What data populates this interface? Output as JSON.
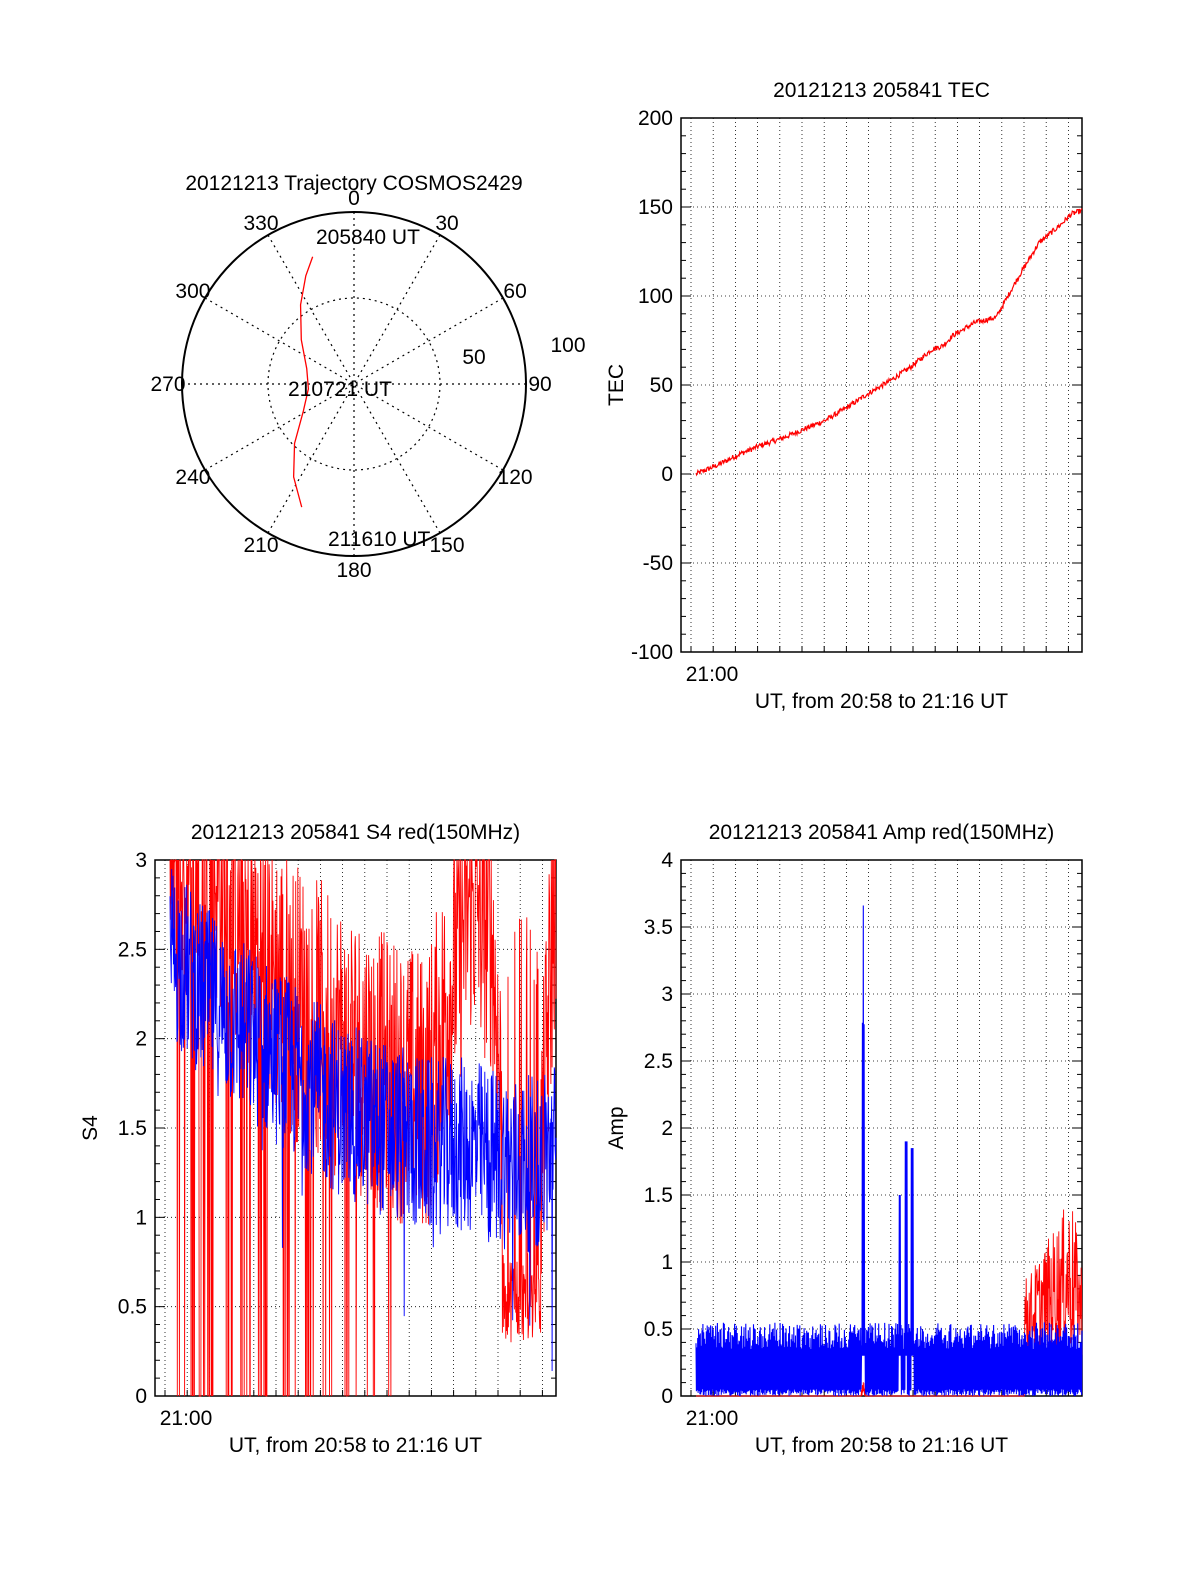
{
  "colors": {
    "red": "#ff0000",
    "blue": "#0000ff",
    "black": "#000000",
    "grid": "#000000"
  },
  "chart_data": [
    {
      "type": "polar",
      "title": "20121213 Trajectory COSMOS2429",
      "azimuth_labels": [
        "0",
        "30",
        "60",
        "90",
        "120",
        "150",
        "180",
        "210",
        "240",
        "270",
        "300",
        "330"
      ],
      "radial_labels": [
        "50",
        "100"
      ],
      "annotations": {
        "start": "205840 UT",
        "middle": "210721 UT",
        "end": "211610 UT"
      },
      "trajectory": [
        {
          "az": 342,
          "el": 20
        },
        {
          "az": 336,
          "el": 28
        },
        {
          "az": 326,
          "el": 40
        },
        {
          "az": 310,
          "el": 54
        },
        {
          "az": 288,
          "el": 64
        },
        {
          "az": 264,
          "el": 66
        },
        {
          "az": 242,
          "el": 60
        },
        {
          "az": 225,
          "el": 46
        },
        {
          "az": 213,
          "el": 32
        },
        {
          "az": 203,
          "el": 20
        }
      ]
    },
    {
      "type": "line",
      "title": "20121213 205841 TEC",
      "xlabel": "UT, from 20:58 to 21:16 UT",
      "ylabel": "TEC",
      "xtick_label": "21:00",
      "ylim": [
        -100,
        200
      ],
      "yticks": [
        "-100",
        "-50",
        "0",
        "50",
        "100",
        "150",
        "200"
      ],
      "grid": true,
      "series": [
        {
          "x": [
            0,
            1,
            2,
            3,
            4,
            5,
            6,
            7,
            8,
            9,
            10,
            11,
            11.5,
            12,
            13,
            14,
            15,
            16,
            17,
            17.5,
            18
          ],
          "values": [
            0,
            5,
            11,
            16,
            20,
            25,
            30,
            37,
            45,
            52,
            60,
            70,
            72,
            78,
            85,
            88,
            110,
            130,
            140,
            146,
            148
          ]
        }
      ]
    },
    {
      "type": "line",
      "title": "20121213 205841 S4 red(150MHz)",
      "xlabel": "UT, from 20:58 to 21:16 UT",
      "ylabel": "S4",
      "xtick_label": "21:00",
      "ylim": [
        0,
        3
      ],
      "yticks": [
        "0",
        "0.5",
        "1",
        "1.5",
        "2",
        "2.5",
        "3"
      ],
      "grid": true,
      "series": [
        {
          "name": "",
          "x": [
            0,
            2,
            4,
            6,
            8,
            10,
            12,
            14,
            16,
            17,
            18
          ],
          "values": [
            2.5,
            2.2,
            2.0,
            1.8,
            1.6,
            1.5,
            1.4,
            1.4,
            1.3,
            1.3,
            1.4
          ]
        },
        {
          "name": "",
          "x": [
            0,
            2,
            4,
            6,
            8,
            10,
            12,
            14,
            15,
            16,
            17,
            18
          ],
          "values": [
            3.0,
            3.0,
            2.5,
            2.2,
            2.0,
            1.8,
            1.7,
            2.8,
            2.6,
            0.4,
            0.5,
            3.0
          ]
        }
      ]
    },
    {
      "type": "line",
      "title": "20121213 205841 Amp red(150MHz)",
      "xlabel": "UT, from 20:58 to 21:16 UT",
      "ylabel": "Amp",
      "xtick_label": "21:00",
      "ylim": [
        0,
        4
      ],
      "yticks": [
        "0",
        "0.5",
        "1",
        "1.5",
        "2",
        "2.5",
        "3",
        "3.5",
        "4"
      ],
      "grid": true,
      "series": [
        {
          "name": "",
          "x": [
            0,
            7.7,
            7.8,
            7.9,
            9.5,
            9.8,
            10.1,
            18
          ],
          "values": [
            0.45,
            0.5,
            3.8,
            0.5,
            1.5,
            1.9,
            1.85,
            0.5
          ]
        },
        {
          "name": "",
          "x": [
            0,
            7.8,
            15.5,
            16.5,
            17.5,
            18
          ],
          "values": [
            0,
            0.15,
            0.6,
            0.9,
            1.2,
            0.7
          ]
        }
      ]
    }
  ]
}
